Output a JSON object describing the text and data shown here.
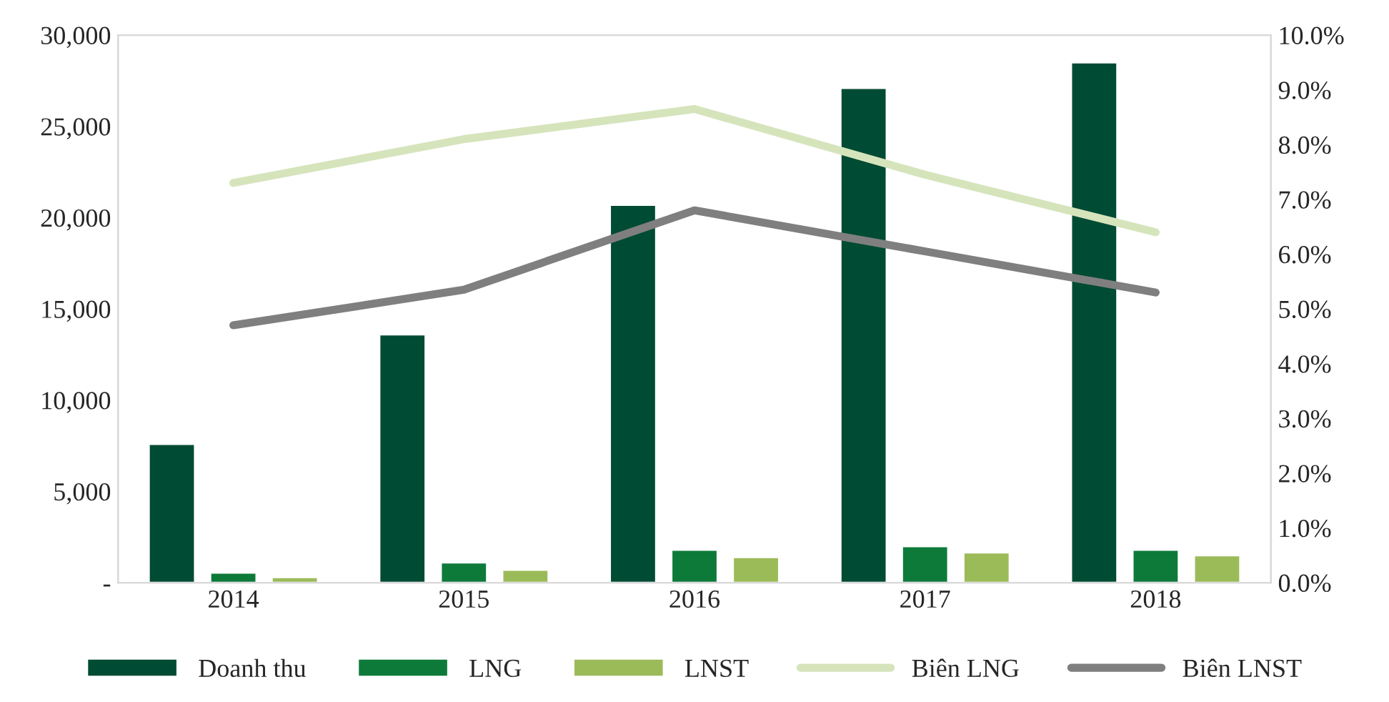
{
  "chart_data": {
    "type": "bar",
    "categories": [
      "2014",
      "2015",
      "2016",
      "2017",
      "2018"
    ],
    "series": [
      {
        "name": "Doanh thu",
        "color": "#004b33",
        "values": [
          7600,
          13600,
          20700,
          27100,
          28500
        ]
      },
      {
        "name": "LNG",
        "color": "#0e7a3a",
        "values": [
          550,
          1100,
          1800,
          2000,
          1800
        ]
      },
      {
        "name": "LNST",
        "color": "#9bbb59",
        "values": [
          300,
          700,
          1400,
          1650,
          1500
        ]
      },
      {
        "name": "Biên LNG",
        "type": "line",
        "axis": "y2",
        "color": "#d6e4bc",
        "values": [
          7.3,
          8.1,
          8.65,
          7.45,
          6.4
        ]
      },
      {
        "name": "Biên LNST",
        "type": "line",
        "axis": "y2",
        "color": "#7f7f7f",
        "values": [
          4.7,
          5.35,
          6.8,
          6.05,
          5.3
        ]
      }
    ],
    "ylim": [
      0,
      30000
    ],
    "yticks": [
      {
        "value": 0,
        "label": "-"
      },
      {
        "value": 5000,
        "label": "5,000"
      },
      {
        "value": 10000,
        "label": "10,000"
      },
      {
        "value": 15000,
        "label": "15,000"
      },
      {
        "value": 20000,
        "label": "20,000"
      },
      {
        "value": 25000,
        "label": "25,000"
      },
      {
        "value": 30000,
        "label": "30,000"
      }
    ],
    "y2lim": [
      0,
      10
    ],
    "y2ticks": [
      {
        "value": 0,
        "label": "0.0%"
      },
      {
        "value": 1,
        "label": "1.0%"
      },
      {
        "value": 2,
        "label": "2.0%"
      },
      {
        "value": 3,
        "label": "3.0%"
      },
      {
        "value": 4,
        "label": "4.0%"
      },
      {
        "value": 5,
        "label": "5.0%"
      },
      {
        "value": 6,
        "label": "6.0%"
      },
      {
        "value": 7,
        "label": "7.0%"
      },
      {
        "value": 8,
        "label": "8.0%"
      },
      {
        "value": 9,
        "label": "9.0%"
      },
      {
        "value": 10,
        "label": "10.0%"
      }
    ],
    "grid": false,
    "legend": "bottom",
    "line_style": "solid",
    "marker": "none"
  }
}
